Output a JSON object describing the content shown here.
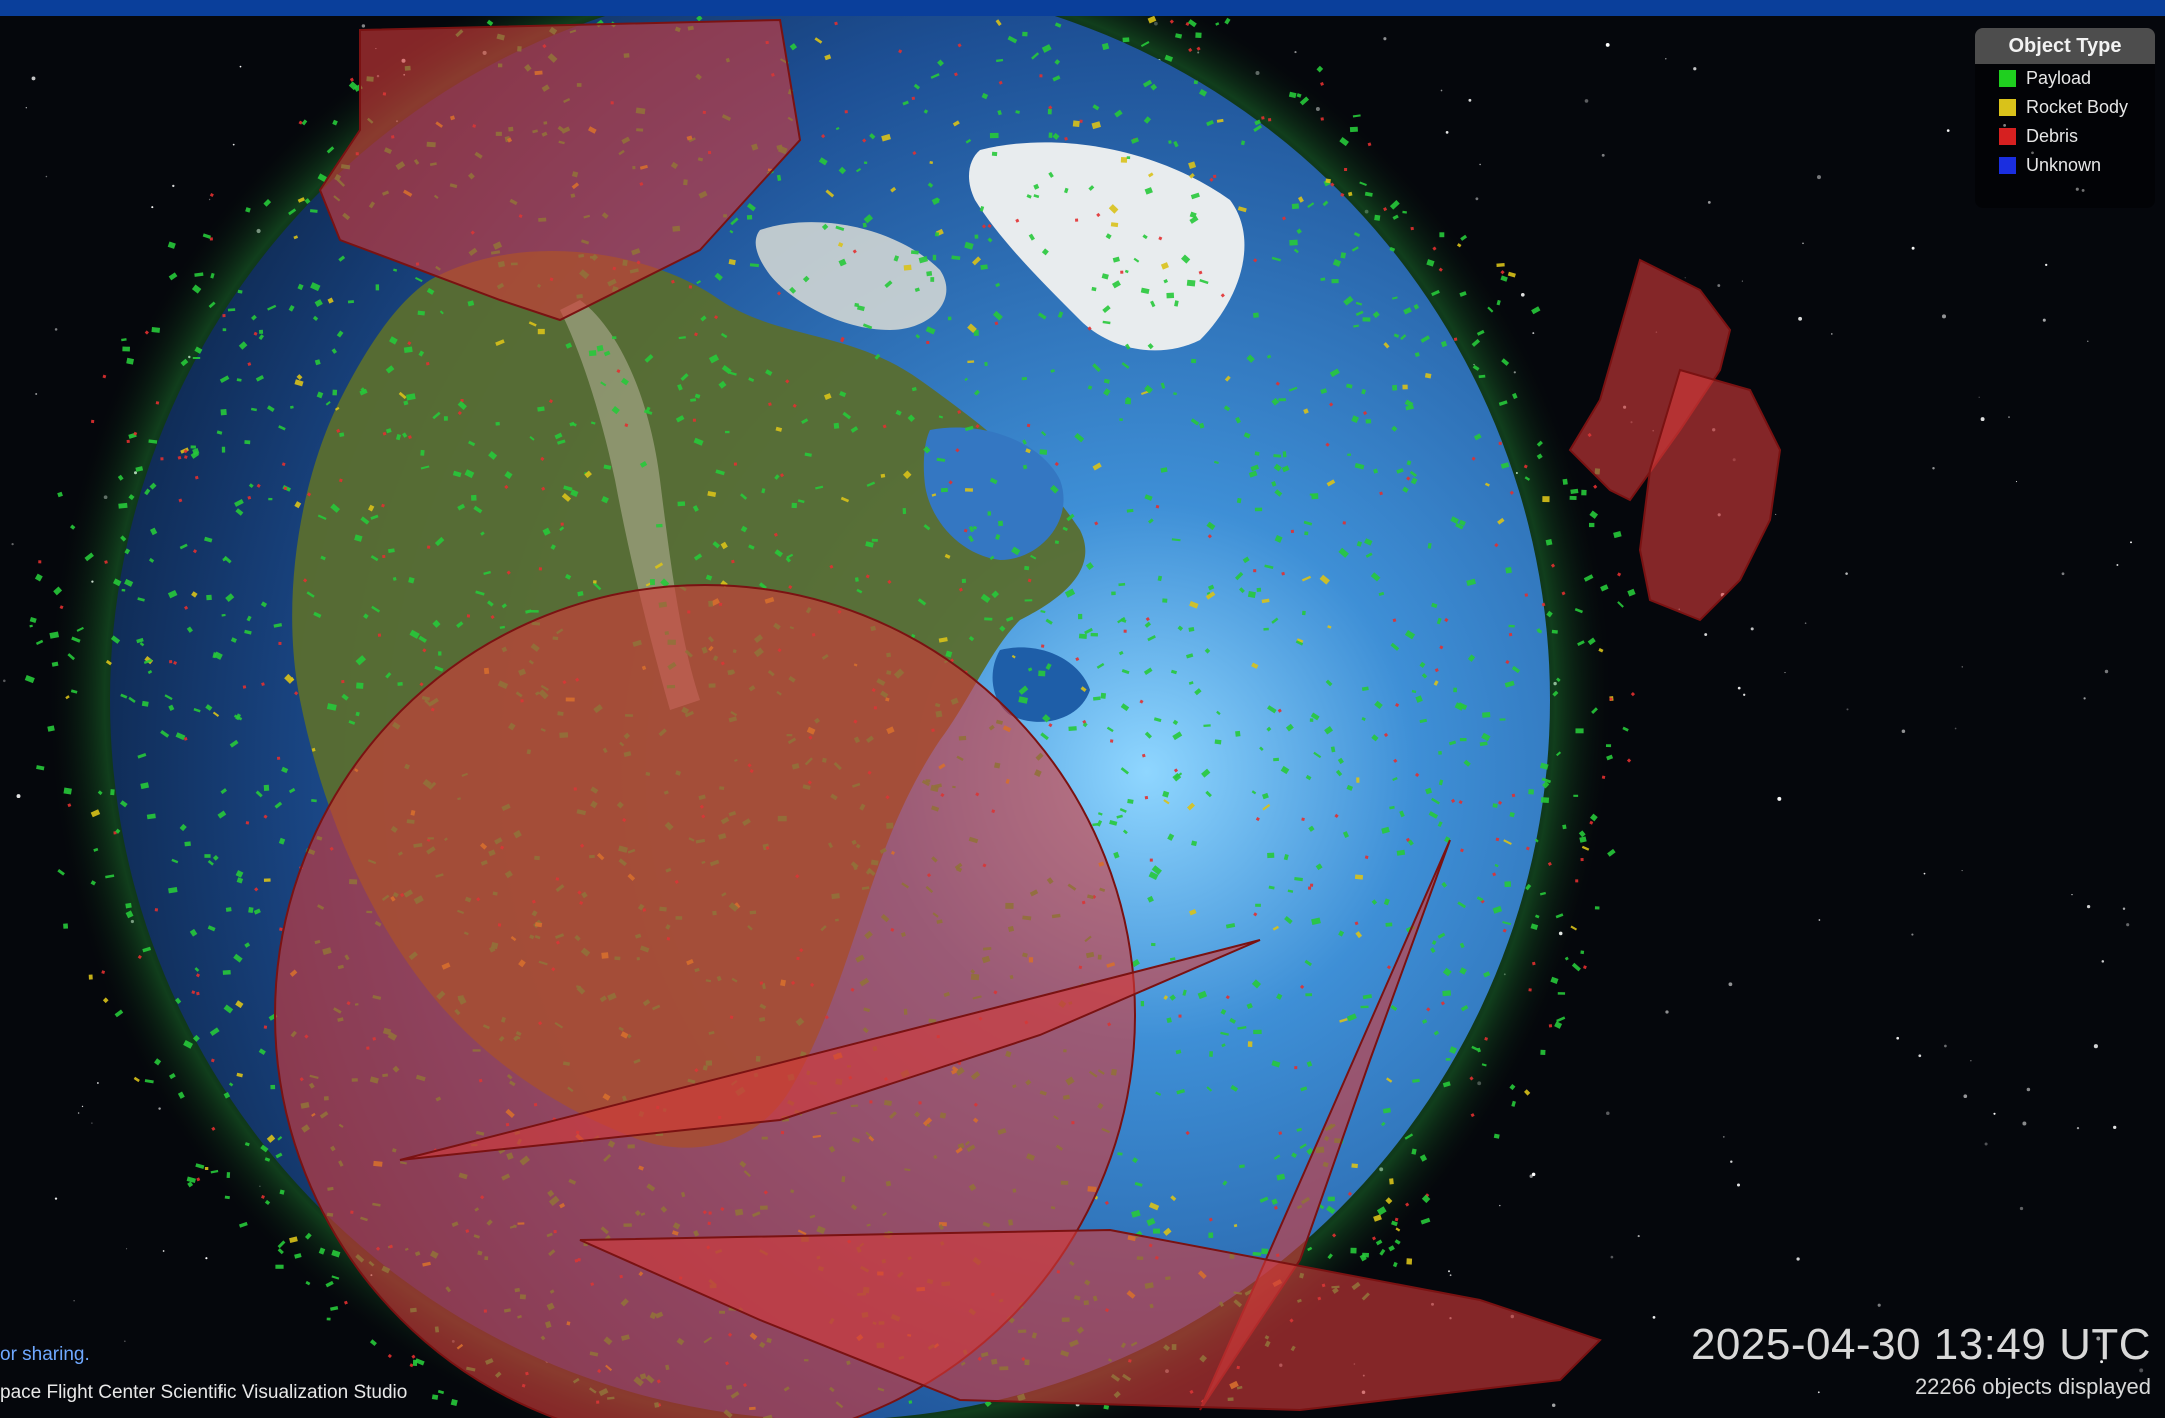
{
  "legend": {
    "title": "Object Type",
    "items": [
      {
        "label": "Payload",
        "color": "#1fcf1f"
      },
      {
        "label": "Rocket Body",
        "color": "#d9c21a"
      },
      {
        "label": "Debris",
        "color": "#d62020"
      },
      {
        "label": "Unknown",
        "color": "#1a2ee0"
      }
    ]
  },
  "footer": {
    "share_text": "or sharing.",
    "credit_text": "pace Flight Center Scientific Visualization Studio"
  },
  "status": {
    "timestamp": "2025-04-30 13:49 UTC",
    "object_count": "22266 objects displayed"
  },
  "colors": {
    "header_bar": "#0a3f9b",
    "space": "#05070c",
    "ocean": "#2f6fb8",
    "land": "#5c6e33",
    "ice": "#e8ecee",
    "sensor_cone": "#d43a3a"
  }
}
